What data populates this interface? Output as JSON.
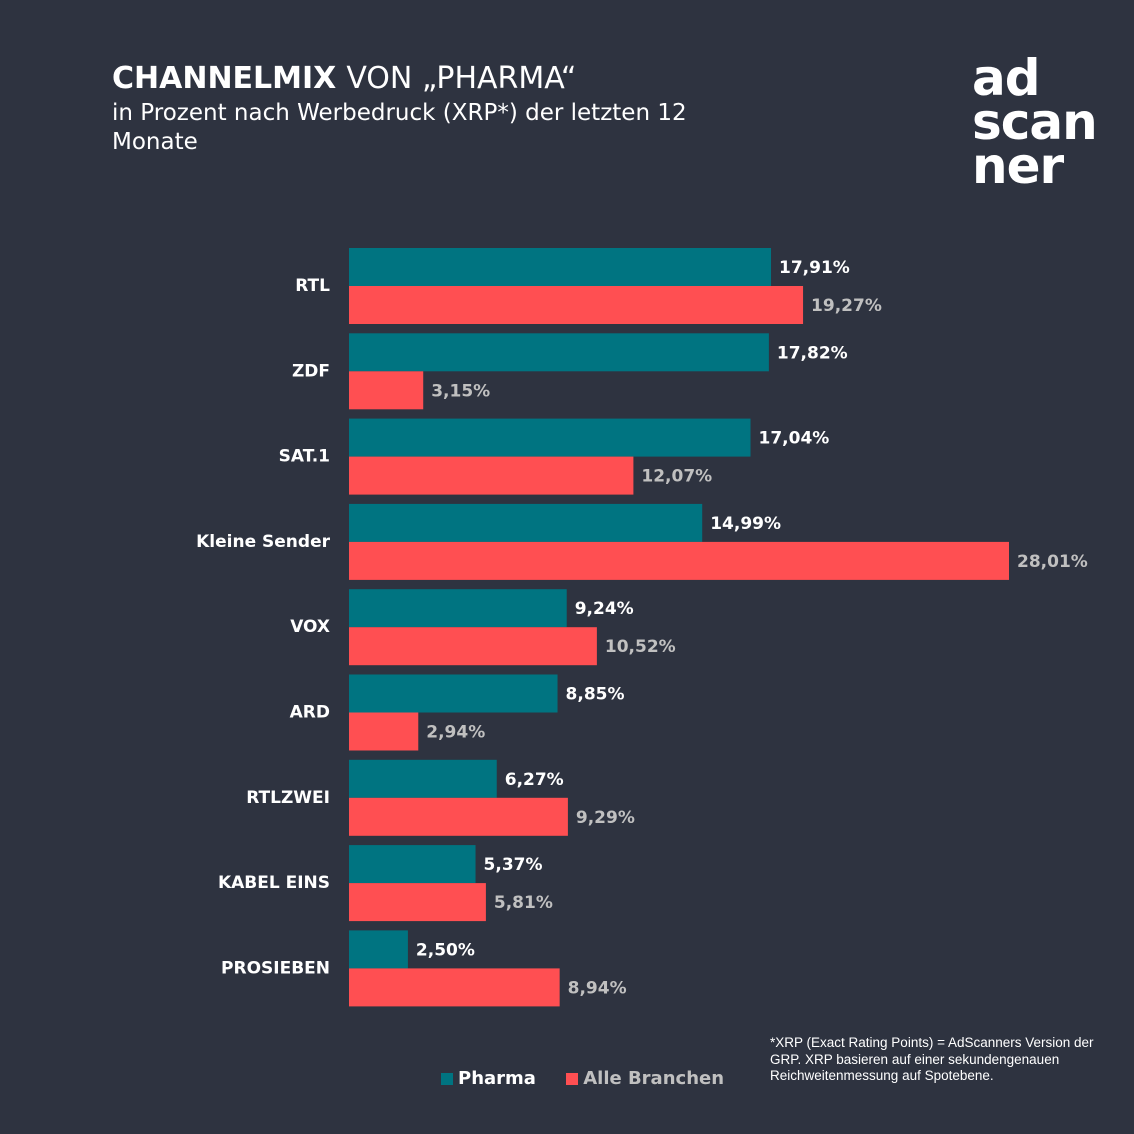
{
  "header": {
    "title_strong": "CHANNELMIX",
    "title_light": "VON „PHARMA“",
    "subtitle": "in Prozent nach Werbedruck (XRP*) der letzten 12 Monate"
  },
  "logo": {
    "line1": "ad",
    "line2": "scan",
    "line3": "ner"
  },
  "colors": {
    "background": "#2e3340",
    "pharma": "#007481",
    "alle_branchen": "#ff4f52",
    "pharma_label": "#ffffff",
    "alle_label": "#c0c0c0"
  },
  "legend": {
    "pharma": "Pharma",
    "alle_branchen": "Alle Branchen"
  },
  "footnote": "*XRP (Exact Rating Points) = AdScanners Version der GRP. XRP basieren auf einer sekundengenauen Reichweitenmessung auf Spotebene.",
  "chart_data": {
    "type": "bar",
    "orientation": "horizontal",
    "categories": [
      "RTL",
      "ZDF",
      "SAT.1",
      "Kleine Sender",
      "VOX",
      "ARD",
      "RTLZWEI",
      "KABEL EINS",
      "PROSIEBEN"
    ],
    "series": [
      {
        "name": "Pharma",
        "values": [
          17.91,
          17.82,
          17.04,
          14.99,
          9.24,
          8.85,
          6.27,
          5.37,
          2.5
        ],
        "labels": [
          "17,91%",
          "17,82%",
          "17,04%",
          "14,99%",
          "9,24%",
          "8,85%",
          "6,27%",
          "5,37%",
          "2,50%"
        ]
      },
      {
        "name": "Alle Branchen",
        "values": [
          19.27,
          3.15,
          12.07,
          28.01,
          10.52,
          2.94,
          9.29,
          5.81,
          8.94
        ],
        "labels": [
          "19,27%",
          "3,15%",
          "12,07%",
          "28,01%",
          "10,52%",
          "2,94%",
          "9,29%",
          "5,81%",
          "8,94%"
        ]
      }
    ],
    "xlim": [
      0,
      28.01
    ],
    "grid": false,
    "legend_position": "bottom"
  }
}
